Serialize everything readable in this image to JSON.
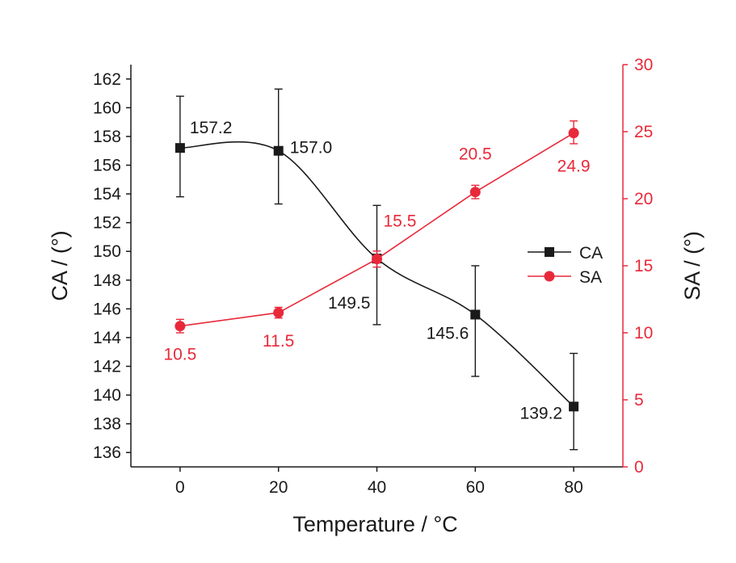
{
  "chart_data": {
    "type": "line",
    "xlabel": "Temperature / °C",
    "ylabel": "CA / (°)",
    "y2label": "SA / (°)",
    "xlim": [
      -10,
      90
    ],
    "ylim": [
      135,
      163
    ],
    "y2lim": [
      0,
      30
    ],
    "xticks": [
      0,
      20,
      40,
      60,
      80
    ],
    "yticks": [
      136,
      138,
      140,
      142,
      144,
      146,
      148,
      150,
      152,
      154,
      156,
      158,
      160,
      162
    ],
    "y2ticks": [
      0,
      5,
      10,
      15,
      20,
      25,
      30
    ],
    "grid": false,
    "legend_position": "right",
    "series": [
      {
        "name": "CA",
        "axis": "left",
        "color": "#1a1a1a",
        "marker": "square",
        "smooth": true,
        "x": [
          0,
          20,
          40,
          60,
          80
        ],
        "values": [
          157.2,
          157.0,
          149.5,
          145.6,
          139.2
        ],
        "err_low": [
          153.8,
          153.3,
          144.9,
          141.3,
          136.2
        ],
        "err_high": [
          160.8,
          161.3,
          153.2,
          149.0,
          142.9
        ],
        "labels": [
          "157.2",
          "157.0",
          "149.5",
          "145.6",
          "139.2"
        ]
      },
      {
        "name": "SA",
        "axis": "right",
        "color": "#e8293a",
        "marker": "circle",
        "smooth": false,
        "x": [
          0,
          20,
          40,
          60,
          80
        ],
        "values": [
          10.5,
          11.5,
          15.5,
          20.5,
          24.9
        ],
        "err_low": [
          10.0,
          11.1,
          14.9,
          20.0,
          24.1
        ],
        "err_high": [
          11.0,
          11.9,
          16.1,
          21.0,
          25.8
        ],
        "labels": [
          "10.5",
          "11.5",
          "15.5",
          "20.5",
          "24.9"
        ]
      }
    ]
  }
}
